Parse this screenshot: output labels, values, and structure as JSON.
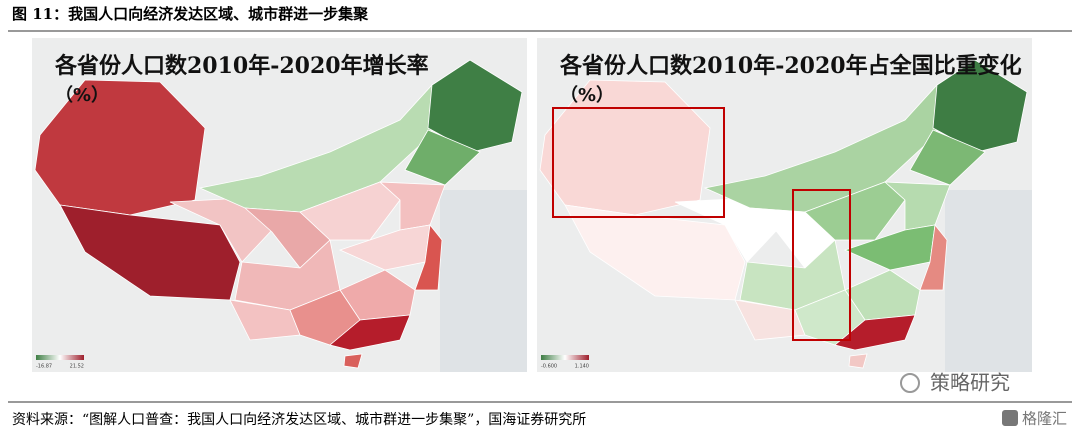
{
  "header": {
    "title": "图 11：我国人口向经济发达区域、城市群进一步集聚"
  },
  "maps": [
    {
      "title": "各省份人口数2010年-2020年增长率",
      "unit": "（%）",
      "legend": {
        "min": "-16.87",
        "max": "21.52"
      }
    },
    {
      "title": "各省份人口数2010年-2020年占全国比重变化",
      "unit": "（%）",
      "legend": {
        "min": "-0.600",
        "max": "1.140"
      }
    }
  ],
  "source": "资料来源：“图解人口普查：我国人口向经济发达区域、城市群进一步集聚”，国海证券研究所",
  "watermark": {
    "logo": "策略研究",
    "brand": "格隆汇"
  }
}
